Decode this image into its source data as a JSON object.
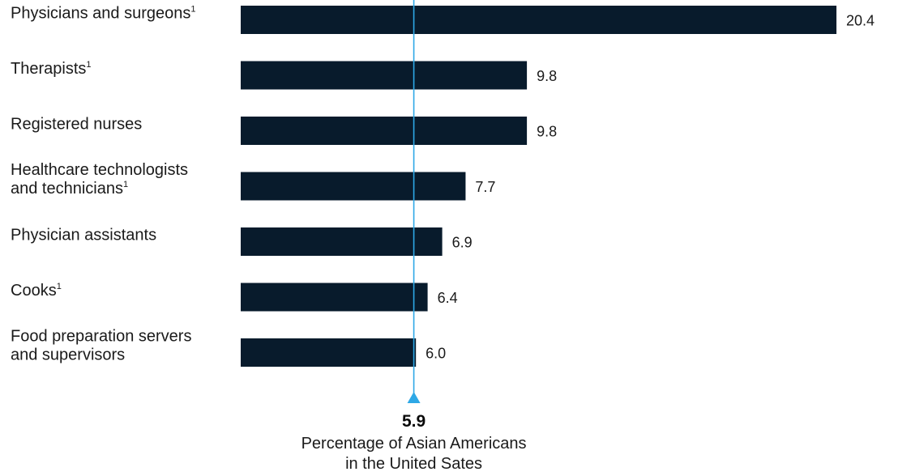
{
  "chart_data": {
    "type": "bar",
    "orientation": "horizontal",
    "categories": [
      "Physicians and surgeons",
      "Therapists",
      "Registered nurses",
      "Healthcare technologists and technicians",
      "Physician assistants",
      "Cooks",
      "Food preparation servers and supervisors"
    ],
    "category_lines": [
      [
        {
          "text": "Physicians and surgeons",
          "sup": "1"
        }
      ],
      [
        {
          "text": "Therapists",
          "sup": "1"
        }
      ],
      [
        {
          "text": "Registered nurses",
          "sup": ""
        }
      ],
      [
        {
          "text": "Healthcare technologists",
          "sup": ""
        },
        {
          "text": "and technicians",
          "sup": "1"
        }
      ],
      [
        {
          "text": "Physician assistants",
          "sup": ""
        }
      ],
      [
        {
          "text": "Cooks",
          "sup": "1"
        }
      ],
      [
        {
          "text": "Food preparation servers",
          "sup": ""
        },
        {
          "text": "and supervisors",
          "sup": ""
        }
      ]
    ],
    "values": [
      20.4,
      9.8,
      9.8,
      7.7,
      6.9,
      6.4,
      6.0
    ],
    "value_labels": [
      "20.4",
      "9.8",
      "9.8",
      "7.7",
      "6.9",
      "6.4",
      "6.0"
    ],
    "reference_line": {
      "value": 5.9,
      "value_label": "5.9",
      "caption_lines": [
        "Percentage of Asian Americans",
        "in the United Sates"
      ]
    },
    "bar_color": "#081b2c",
    "reference_color": "#2ea8e6",
    "grid": false,
    "legend": "none"
  }
}
